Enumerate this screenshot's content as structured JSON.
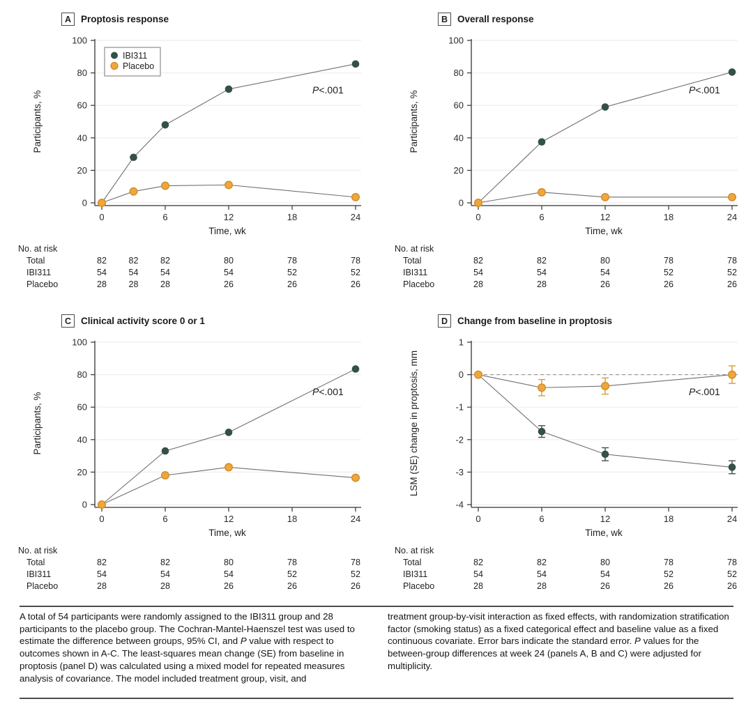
{
  "figure": {
    "caption": {
      "left": {
        "pre": "A total of 54 participants were randomly assigned to the IBI311 group and 28 participants to the placebo group. The Cochran-Mantel-Haenszel test was used to estimate the difference between groups, 95% CI, and ",
        "italic": "P",
        "post": " value with respect to outcomes shown in A-C. The least-squares mean change (SE) from baseline in proptosis (panel D) was calculated using a mixed model for repeated measures analysis of covariance. The model included treatment group, visit, and"
      },
      "right": {
        "pre": "treatment group-by-visit interaction as fixed effects, with randomization stratification factor (smoking status) as a fixed categorical effect and baseline value as a fixed continuous covariate. Error bars indicate the standard error. ",
        "italic": "P",
        "post": " values for the between-group differences at week 24 (panels A, B and C) were adjusted for multiplicity."
      }
    },
    "colors": {
      "ibi311": "#33504a",
      "placebo_fill": "#efa63c",
      "placebo_stroke": "#d08c28",
      "series_line": "#6f6f6f",
      "grid": "#f1edec",
      "axis": "#333333"
    }
  },
  "chart_data": [
    {
      "panel_letter": "A",
      "title": "Proptosis response",
      "type": "line",
      "x": [
        0,
        3,
        6,
        12,
        24
      ],
      "series": [
        {
          "name": "IBI311",
          "color": "#33504a",
          "values": [
            0,
            28,
            48,
            70,
            85.5
          ]
        },
        {
          "name": "Placebo",
          "color": "#efa63c",
          "stroke": "#d08c28",
          "values": [
            0,
            7,
            10.5,
            11,
            3.5
          ]
        }
      ],
      "xlabel": "Time, wk",
      "ylabel": "Participants, %",
      "ylim": [
        0,
        100
      ],
      "yticks": [
        0,
        20,
        40,
        60,
        80,
        100
      ],
      "xticks": [
        0,
        6,
        12,
        18,
        24
      ],
      "legend": true,
      "p": {
        "italic": "P",
        "rest": "<.001"
      },
      "at_risk": {
        "label": "No. at risk",
        "weeks": [
          0,
          3,
          6,
          12,
          18,
          24
        ],
        "rows": [
          {
            "label": "Total",
            "values": [
              82,
              82,
              82,
              80,
              78,
              78
            ]
          },
          {
            "label": "IBI311",
            "values": [
              54,
              54,
              54,
              54,
              52,
              52
            ]
          },
          {
            "label": "Placebo",
            "values": [
              28,
              28,
              28,
              26,
              26,
              26
            ]
          }
        ]
      }
    },
    {
      "panel_letter": "B",
      "title": "Overall response",
      "type": "line",
      "x": [
        0,
        6,
        12,
        24
      ],
      "series": [
        {
          "name": "IBI311",
          "color": "#33504a",
          "values": [
            0,
            37.5,
            59,
            80.5
          ]
        },
        {
          "name": "Placebo",
          "color": "#efa63c",
          "stroke": "#d08c28",
          "values": [
            0,
            6.5,
            3.5,
            3.5
          ]
        }
      ],
      "xlabel": "Time, wk",
      "ylabel": "Participants, %",
      "ylim": [
        0,
        100
      ],
      "yticks": [
        0,
        20,
        40,
        60,
        80,
        100
      ],
      "xticks": [
        0,
        6,
        12,
        18,
        24
      ],
      "legend": false,
      "p": {
        "italic": "P",
        "rest": "<.001"
      },
      "at_risk": {
        "label": "No. at risk",
        "weeks": [
          0,
          6,
          12,
          18,
          24
        ],
        "rows": [
          {
            "label": "Total",
            "values": [
              82,
              82,
              80,
              78,
              78
            ]
          },
          {
            "label": "IBI311",
            "values": [
              54,
              54,
              54,
              52,
              52
            ]
          },
          {
            "label": "Placebo",
            "values": [
              28,
              28,
              26,
              26,
              26
            ]
          }
        ]
      }
    },
    {
      "panel_letter": "C",
      "title": "Clinical activity score 0 or 1",
      "type": "line",
      "x": [
        0,
        6,
        12,
        24
      ],
      "series": [
        {
          "name": "IBI311",
          "color": "#33504a",
          "values": [
            0,
            33,
            44.5,
            83.5
          ]
        },
        {
          "name": "Placebo",
          "color": "#efa63c",
          "stroke": "#d08c28",
          "values": [
            0,
            18,
            23,
            16.5
          ]
        }
      ],
      "xlabel": "Time, wk",
      "ylabel": "Participants, %",
      "ylim": [
        0,
        100
      ],
      "yticks": [
        0,
        20,
        40,
        60,
        80,
        100
      ],
      "xticks": [
        0,
        6,
        12,
        18,
        24
      ],
      "legend": false,
      "p": {
        "italic": "P",
        "rest": "<.001"
      },
      "at_risk": {
        "label": "No. at risk",
        "weeks": [
          0,
          6,
          12,
          18,
          24
        ],
        "rows": [
          {
            "label": "Total",
            "values": [
              82,
              82,
              80,
              78,
              78
            ]
          },
          {
            "label": "IBI311",
            "values": [
              54,
              54,
              54,
              52,
              52
            ]
          },
          {
            "label": "Placebo",
            "values": [
              28,
              28,
              26,
              26,
              26
            ]
          }
        ]
      }
    },
    {
      "panel_letter": "D",
      "title": "Change from baseline in proptosis",
      "type": "line",
      "x": [
        0,
        6,
        12,
        24
      ],
      "series": [
        {
          "name": "IBI311",
          "color": "#33504a",
          "err_color": "#44504c",
          "values": [
            0,
            -1.75,
            -2.45,
            -2.85
          ],
          "se": [
            0,
            0.18,
            0.2,
            0.2
          ]
        },
        {
          "name": "Placebo",
          "color": "#efa63c",
          "stroke": "#d08c28",
          "err_color": "#dd9a30",
          "values": [
            0,
            -0.4,
            -0.35,
            0
          ],
          "se": [
            0,
            0.25,
            0.25,
            0.27
          ]
        }
      ],
      "xlabel": "Time, wk",
      "ylabel": "LSM (SE) change in proptosis, mm",
      "ylim": [
        -4,
        1
      ],
      "yticks": [
        1,
        0,
        -1,
        -2,
        -3,
        -4
      ],
      "xticks": [
        0,
        6,
        12,
        18,
        24
      ],
      "legend": false,
      "zero_dashed": true,
      "p": {
        "italic": "P",
        "rest": "<.001"
      },
      "at_risk": {
        "label": "No. at risk",
        "weeks": [
          0,
          6,
          12,
          18,
          24
        ],
        "rows": [
          {
            "label": "Total",
            "values": [
              82,
              82,
              80,
              78,
              78
            ]
          },
          {
            "label": "IBI311",
            "values": [
              54,
              54,
              54,
              52,
              52
            ]
          },
          {
            "label": "Placebo",
            "values": [
              28,
              28,
              26,
              26,
              26
            ]
          }
        ]
      }
    }
  ]
}
